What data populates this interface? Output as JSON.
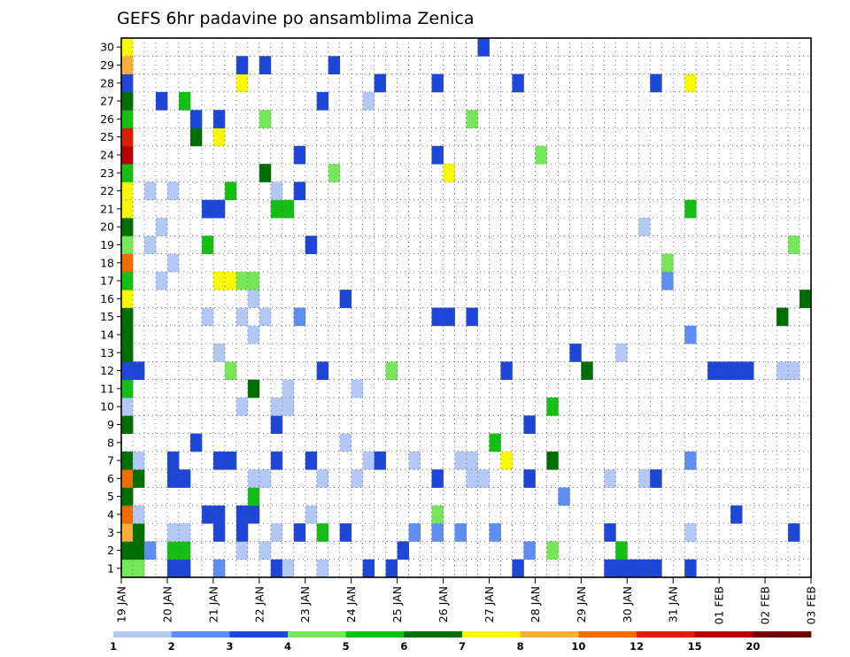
{
  "chart_data": {
    "type": "heatmap",
    "title": "GEFS 6hr padavine po ansamblima Zenica",
    "xlabel": "",
    "ylabel": "",
    "x_ticks": [
      "19 JAN",
      "20 JAN",
      "21 JAN",
      "22 JAN",
      "23 JAN",
      "24 JAN",
      "25 JAN",
      "26 JAN",
      "27 JAN",
      "28 JAN",
      "29 JAN",
      "30 JAN",
      "31 JAN",
      "01 FEB",
      "02 FEB",
      "03 FEB"
    ],
    "y_ticks": [
      "1",
      "2",
      "3",
      "4",
      "5",
      "6",
      "7",
      "8",
      "9",
      "10",
      "11",
      "12",
      "13",
      "14",
      "15",
      "16",
      "17",
      "18",
      "19",
      "20",
      "21",
      "22",
      "23",
      "24",
      "25",
      "26",
      "27",
      "28",
      "29",
      "30"
    ],
    "ylim": [
      1,
      30
    ],
    "steps_per_day": 4,
    "days": 15,
    "grid": "dotted",
    "colorbar": {
      "labels": [
        "1",
        "2",
        "3",
        "4",
        "5",
        "6",
        "7",
        "8",
        "10",
        "12",
        "15",
        "20"
      ],
      "colors": [
        "#b4c8f5",
        "#5f8df0",
        "#1e46d7",
        "#78e65a",
        "#14be14",
        "#006e00",
        "#fafa00",
        "#faaf3c",
        "#f06e00",
        "#dc1e00",
        "#b40000",
        "#6e0000"
      ]
    },
    "rows": {
      "1": "44..33..2....01..1...3.0..........0.......00000..0.....................................................................3..",
      "2": "662.55....1.1...........3..........2.4.....5...................0......................................................",
      "3": "86..11..0.0..1.3.5.3.....2.2.2..2.........0......1........3..........................................1....4....",
      "4": "91.....00.00....1..........4.........................3.......................0........................2......",
      "5": "6..........5..........................2..................................................3........................",
      "6": "96..00.....11....1..1......3..11...3......1..13......................3.......11....0.........................",
      "7": "61..0...00...3..0....13..1...11..7...6...........2.................................................................",
      "8": "......0............1............5..",
      "9": "6............3.....................3...................................................................",
      "10": "1.........1..11......................5.............................................................",
      "11": "5..........6..1.....1......................................................................................3",
      "12": "00.......4.......3.....4.........3......6..........0000..11...........0...1.........0..",
      "13": "6.......1..............................3...1...................................................",
      "14": "6..........1.....................................2.........................................0..1..",
      "15": "6......1..1.1..2...........00.0..........................6..........................22..",
      "16": "7..........1.......3.......................................6a...................................",
      "17": "5..1....7744...................................2..................1...3....22...................................2",
      "18": "9...1..........................................4..............6..9...............................................1",
      "19": "4.1....5........3.........................................4.......8..5.55..................1....7..................",
      "20": "6..1.........................................1............................",
      "21": "7......00....55..................................5............4....0.9.3..................................",
      "22": "7.1.1....5...1.0..",
      "23": "5...........6.....4.........7...................",
      "24": "b..............0...........3........4..................",
      "25": "a.....6.7..............................................",
      "26": "5.....0.0...4.................4.....",
      "27": "6..3.5...........3...1.....",
      "28": "3.........7...........3....3......0...........3..7...",
      "29": "8.........3.0.....3......................................",
      "30": "7..............................3......................"
    }
  }
}
